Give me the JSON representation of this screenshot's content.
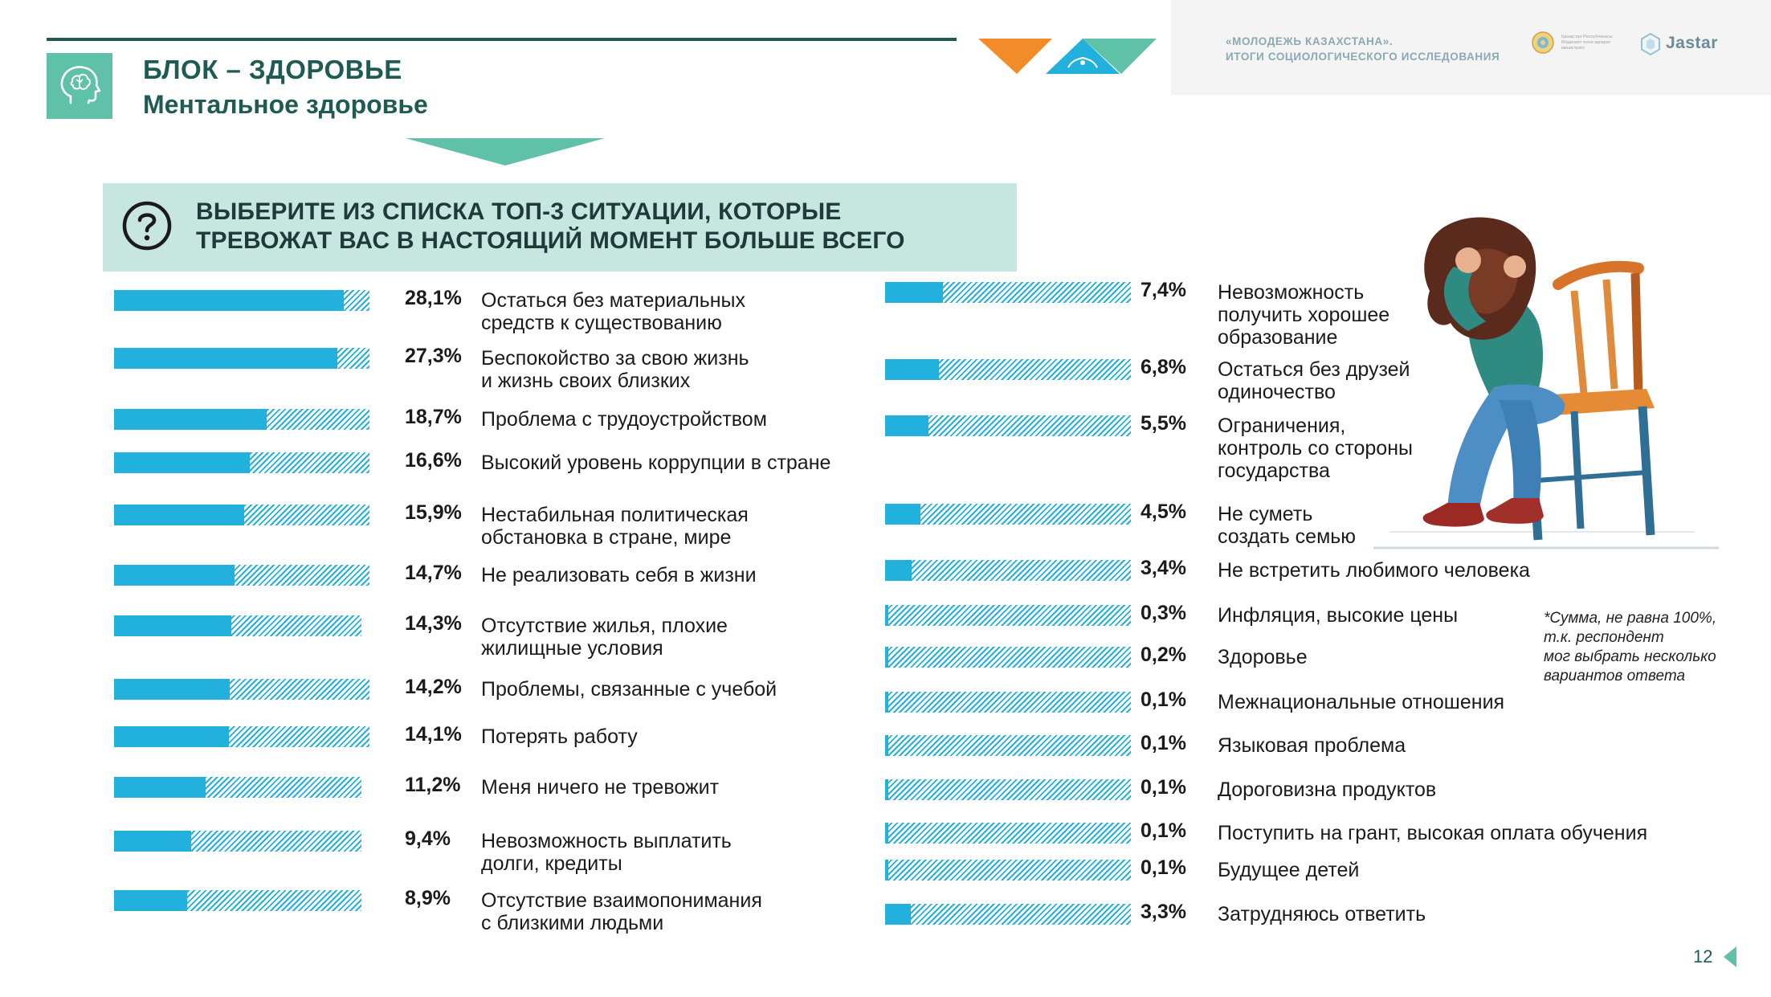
{
  "header": {
    "block_title": "БЛОК – ЗДОРОВЬЕ",
    "block_subtitle": "Ментальное здоровье",
    "study_title_line1": "«МОЛОДЕЖЬ КАЗАХСТАНА».",
    "study_title_line2": "ИТОГИ СОЦИОЛОГИЧЕСКОГО ИССЛЕДОВАНИЯ",
    "emblem_text": "Қазақстан Республикасы Мәдениет және ақпарат министрлігі",
    "logo_text": "Jastar"
  },
  "question": {
    "line1": "ВЫБЕРИТЕ ИЗ СПИСКА ТОП-3 СИТУАЦИИ, КОТОРЫЕ",
    "line2": "ТРЕВОЖАТ ВАС В НАСТОЯЩИЙ МОМЕНТ БОЛЬШЕ ВСЕГО"
  },
  "chart_data": {
    "type": "bar",
    "unit": "%",
    "xlim": [
      0,
      100
    ],
    "left_column": [
      {
        "value": 28.1,
        "value_label": "28,1%",
        "label": "Остаться без материальных\nсредств к существованию"
      },
      {
        "value": 27.3,
        "value_label": "27,3%",
        "label": "Беспокойство за свою жизнь\nи жизнь своих близких"
      },
      {
        "value": 18.7,
        "value_label": "18,7%",
        "label": "Проблема с трудоустройством"
      },
      {
        "value": 16.6,
        "value_label": "16,6%",
        "label": "Высокий уровень коррупции в стране"
      },
      {
        "value": 15.9,
        "value_label": "15,9%",
        "label": "Нестабильная политическая\nобстановка в стране, мире"
      },
      {
        "value": 14.7,
        "value_label": "14,7%",
        "label": "Не реализовать себя в жизни"
      },
      {
        "value": 14.3,
        "value_label": "14,3%",
        "label": "Отсутствие жилья, плохие\nжилищные условия"
      },
      {
        "value": 14.2,
        "value_label": "14,2%",
        "label": "Проблемы, связанные с учебой"
      },
      {
        "value": 14.1,
        "value_label": "14,1%",
        "label": "Потерять работу"
      },
      {
        "value": 11.2,
        "value_label": "11,2%",
        "label": "Меня ничего не тревожит"
      },
      {
        "value": 9.4,
        "value_label": "9,4%",
        "label": "Невозможность выплатить\nдолги, кредиты"
      },
      {
        "value": 8.9,
        "value_label": "8,9%",
        "label": "Отсутствие взаимопонимания\nс близкими людьми"
      }
    ],
    "right_column": [
      {
        "value": 7.4,
        "value_label": "7,4%",
        "label": "Невозможность\nполучить хорошее\nобразование"
      },
      {
        "value": 6.8,
        "value_label": "6,8%",
        "label": "Остаться без друзей\nодиночество"
      },
      {
        "value": 5.5,
        "value_label": "5,5%",
        "label": "Ограничения,\nконтроль со стороны\nгосударства"
      },
      {
        "value": 4.5,
        "value_label": "4,5%",
        "label": "Не суметь\nсоздать семью"
      },
      {
        "value": 3.4,
        "value_label": "3,4%",
        "label": "Не встретить любимого человека"
      },
      {
        "value": 0.3,
        "value_label": "0,3%",
        "label": "Инфляция, высокие цены"
      },
      {
        "value": 0.2,
        "value_label": "0,2%",
        "label": "Здоровье"
      },
      {
        "value": 0.1,
        "value_label": "0,1%",
        "label": "Межнациональные отношения"
      },
      {
        "value": 0.1,
        "value_label": "0,1%",
        "label": "Языковая проблема"
      },
      {
        "value": 0.1,
        "value_label": "0,1%",
        "label": "Дороговизна продуктов"
      },
      {
        "value": 0.1,
        "value_label": "0,1%",
        "label": "Поступить на грант, высокая оплата обучения"
      },
      {
        "value": 0.1,
        "value_label": "0,1%",
        "label": "Будущее детей"
      },
      {
        "value": 3.3,
        "value_label": "3,3%",
        "label": "Затрудняюсь ответить"
      }
    ]
  },
  "footnote": "*Сумма, не равна 100%,\nт.к. респондент\nмог выбрать несколько\nвариантов ответа",
  "page_number": "12",
  "colors": {
    "bar_fill": "#22b1dd",
    "accent_dark": "#1f5b53",
    "accent_mint": "#5fc1a7",
    "question_bg": "#c6e6df",
    "orange": "#f28c28"
  },
  "icons": {
    "block": "brain-head-icon",
    "question": "question-circle-icon"
  }
}
